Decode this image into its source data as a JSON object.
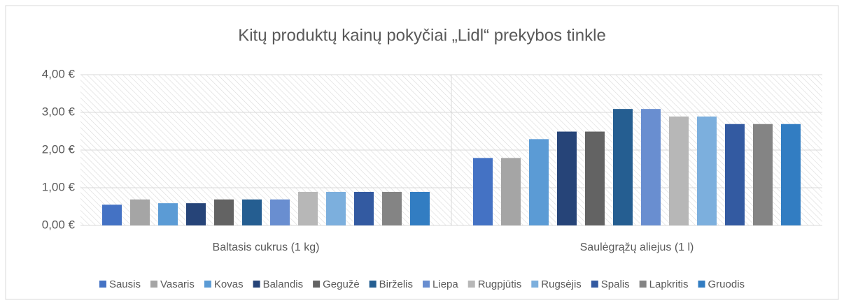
{
  "chart_data": {
    "type": "bar",
    "title": "Kitų produktų kainų pokyčiai „Lidl“ prekybos tinkle",
    "categories": [
      "Baltasis cukrus (1 kg)",
      "Saulėgrąžų aliejus (1 l)"
    ],
    "series": [
      {
        "name": "Sausis",
        "color": "#4472c4",
        "values": [
          0.55,
          1.79
        ]
      },
      {
        "name": "Vasaris",
        "color": "#a5a5a5",
        "values": [
          0.69,
          1.79
        ]
      },
      {
        "name": "Kovas",
        "color": "#5b9bd5",
        "values": [
          0.59,
          2.29
        ]
      },
      {
        "name": "Balandis",
        "color": "#264478",
        "values": [
          0.59,
          2.49
        ]
      },
      {
        "name": "Gegužė",
        "color": "#636363",
        "values": [
          0.69,
          2.49
        ]
      },
      {
        "name": "Birželis",
        "color": "#255e91",
        "values": [
          0.69,
          3.09
        ]
      },
      {
        "name": "Liepa",
        "color": "#698ed0",
        "values": [
          0.69,
          3.09
        ]
      },
      {
        "name": "Rugpjūtis",
        "color": "#b7b7b7",
        "values": [
          0.89,
          2.89
        ]
      },
      {
        "name": "Rugsėjis",
        "color": "#7cafdd",
        "values": [
          0.89,
          2.89
        ]
      },
      {
        "name": "Spalis",
        "color": "#335aa1",
        "values": [
          0.89,
          2.69
        ]
      },
      {
        "name": "Lapkritis",
        "color": "#848484",
        "values": [
          0.89,
          2.69
        ]
      },
      {
        "name": "Gruodis",
        "color": "#327dc2",
        "values": [
          0.89,
          2.69
        ]
      }
    ],
    "ylim": [
      0,
      4
    ],
    "yticks": [
      {
        "value": 0,
        "label": "0,00 €"
      },
      {
        "value": 1,
        "label": "1,00 €"
      },
      {
        "value": 2,
        "label": "2,00 €"
      },
      {
        "value": 3,
        "label": "3,00 €"
      },
      {
        "value": 4,
        "label": "4,00 €"
      }
    ],
    "grid": true,
    "legend": "bottom"
  }
}
